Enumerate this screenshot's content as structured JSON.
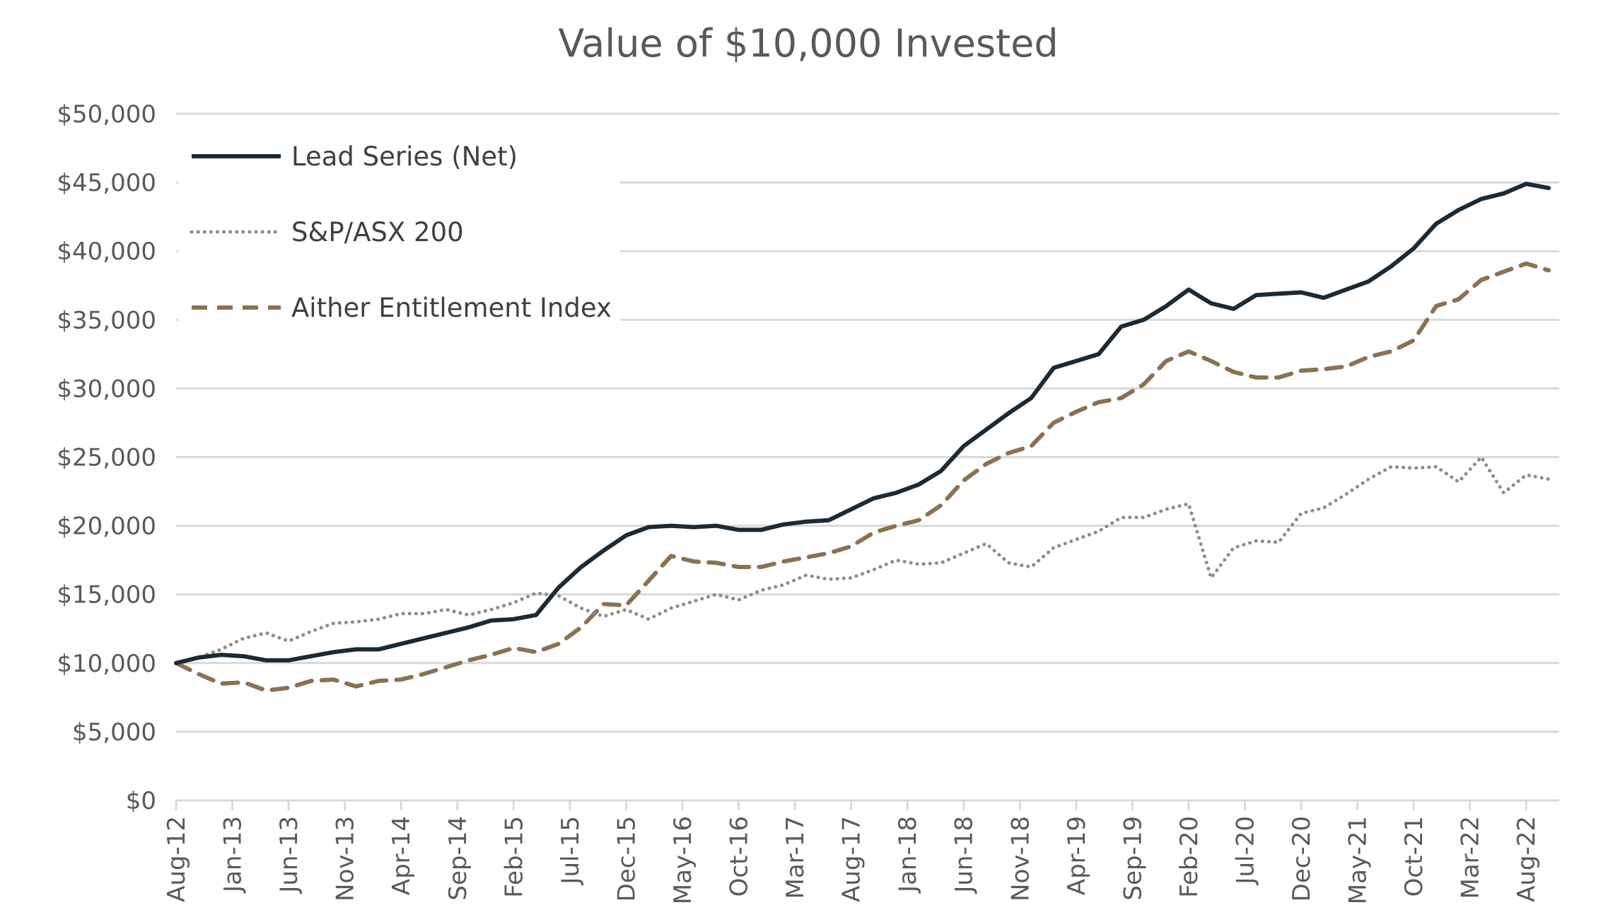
{
  "chart_data": {
    "type": "line",
    "title": "Value of $10,000 Invested",
    "xlabel": "",
    "ylabel": "",
    "ylim": [
      0,
      50000
    ],
    "y_ticks": [
      "$0",
      "$5,000",
      "$10,000",
      "$15,000",
      "$20,000",
      "$25,000",
      "$30,000",
      "$35,000",
      "$40,000",
      "$45,000",
      "$50,000"
    ],
    "x_ticks": [
      "Aug-12",
      "Jan-13",
      "Jun-13",
      "Nov-13",
      "Apr-14",
      "Sep-14",
      "Feb-15",
      "Jul-15",
      "Dec-15",
      "May-16",
      "Oct-16",
      "Mar-17",
      "Aug-17",
      "Jan-18",
      "Jun-18",
      "Nov-18",
      "Apr-19",
      "Sep-19",
      "Feb-20",
      "Jul-20",
      "Dec-20",
      "May-21",
      "Oct-21",
      "Mar-22",
      "Aug-22"
    ],
    "grid": true,
    "legend_position": "top-left",
    "x": [
      "Aug-12",
      "Oct-12",
      "Dec-12",
      "Feb-13",
      "Apr-13",
      "Jun-13",
      "Aug-13",
      "Oct-13",
      "Dec-13",
      "Feb-14",
      "Apr-14",
      "Jun-14",
      "Aug-14",
      "Oct-14",
      "Dec-14",
      "Feb-15",
      "Apr-15",
      "Jun-15",
      "Aug-15",
      "Oct-15",
      "Dec-15",
      "Feb-16",
      "Apr-16",
      "Jun-16",
      "Aug-16",
      "Oct-16",
      "Dec-16",
      "Feb-17",
      "Apr-17",
      "Jun-17",
      "Aug-17",
      "Oct-17",
      "Dec-17",
      "Feb-18",
      "Apr-18",
      "Jun-18",
      "Aug-18",
      "Oct-18",
      "Dec-18",
      "Feb-19",
      "Apr-19",
      "Jun-19",
      "Aug-19",
      "Oct-19",
      "Dec-19",
      "Feb-20",
      "Apr-20",
      "Jun-20",
      "Aug-20",
      "Oct-20",
      "Dec-20",
      "Feb-21",
      "Apr-21",
      "Jun-21",
      "Aug-21",
      "Oct-21",
      "Dec-21",
      "Feb-22",
      "Apr-22",
      "Jun-22",
      "Aug-22",
      "Oct-22"
    ],
    "series": [
      {
        "name": "Lead Series (Net)",
        "color": "#1b2a35",
        "style": "solid",
        "values": [
          10000,
          10400,
          10600,
          10500,
          10200,
          10200,
          10500,
          10800,
          11000,
          11000,
          11400,
          11800,
          12200,
          12600,
          13100,
          13200,
          13500,
          15500,
          17000,
          18200,
          19300,
          19900,
          20000,
          19900,
          20000,
          19700,
          19700,
          20100,
          20300,
          20400,
          21200,
          22000,
          22400,
          23000,
          24000,
          25800,
          27000,
          28200,
          29300,
          31500,
          32000,
          32500,
          34500,
          35000,
          36000,
          37200,
          36200,
          35800,
          36800,
          36900,
          37000,
          36600,
          37200,
          37800,
          38900,
          40200,
          42000,
          43000,
          43800,
          44200,
          44900,
          44600
        ]
      },
      {
        "name": "S&P/ASX 200",
        "color": "#8c8c8c",
        "style": "dotted",
        "values": [
          10000,
          10400,
          11000,
          11800,
          12200,
          11600,
          12300,
          12900,
          13000,
          13200,
          13600,
          13600,
          13900,
          13500,
          13900,
          14400,
          15100,
          14900,
          14000,
          13400,
          13900,
          13200,
          14000,
          14500,
          15000,
          14600,
          15300,
          15700,
          16400,
          16100,
          16200,
          16800,
          17500,
          17200,
          17300,
          18000,
          18700,
          17300,
          17000,
          18400,
          19000,
          19600,
          20600,
          20600,
          21200,
          21600,
          16200,
          18400,
          18900,
          18800,
          20900,
          21300,
          22300,
          23400,
          24300,
          24200,
          24300,
          23200,
          25000,
          22400,
          23700,
          23400
        ]
      },
      {
        "name": "Aither Entitlement Index",
        "color": "#8b7150",
        "style": "dashed",
        "values": [
          10000,
          9200,
          8500,
          8600,
          8000,
          8200,
          8700,
          8800,
          8300,
          8700,
          8800,
          9200,
          9700,
          10200,
          10600,
          11100,
          10800,
          11400,
          12600,
          14300,
          14200,
          16000,
          17800,
          17400,
          17300,
          17000,
          17000,
          17400,
          17700,
          18000,
          18500,
          19500,
          20000,
          20400,
          21500,
          23300,
          24500,
          25300,
          25800,
          27500,
          28300,
          29000,
          29300,
          30300,
          32000,
          32700,
          32000,
          31200,
          30800,
          30800,
          31300,
          31400,
          31600,
          32300,
          32700,
          33500,
          36000,
          36500,
          37900,
          38500,
          39100,
          38600
        ]
      }
    ]
  }
}
